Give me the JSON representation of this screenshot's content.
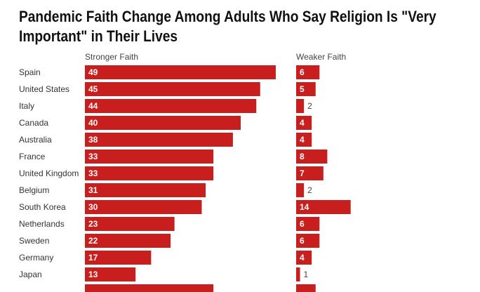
{
  "chart_data": {
    "type": "bar",
    "orientation": "horizontal",
    "title": "Pandemic Faith Change Among Adults Who Say Religion Is \"Very Important\" in Their Lives",
    "categories": [
      "Spain",
      "United States",
      "Italy",
      "Canada",
      "Australia",
      "France",
      "United Kingdom",
      "Belgium",
      "South Korea",
      "Netherlands",
      "Sweden",
      "Germany",
      "Japan",
      ""
    ],
    "series": [
      {
        "name": "Stronger Faith",
        "values": [
          49,
          45,
          44,
          40,
          38,
          33,
          33,
          31,
          30,
          23,
          22,
          17,
          13,
          33
        ]
      },
      {
        "name": "Weaker Faith",
        "values": [
          6,
          5,
          2,
          4,
          4,
          8,
          7,
          2,
          14,
          6,
          6,
          4,
          1,
          5
        ]
      }
    ],
    "bar_color": "#c81e1e",
    "grid": false,
    "legend": "none"
  }
}
